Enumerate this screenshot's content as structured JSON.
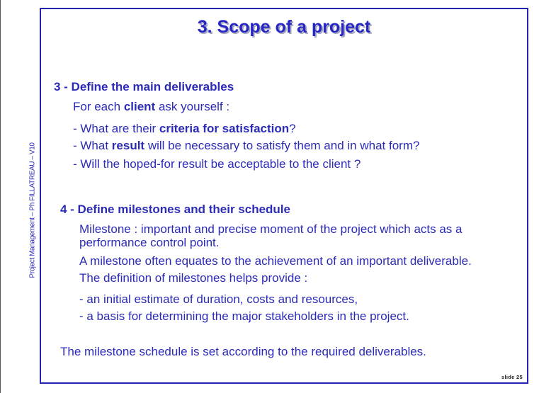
{
  "title": "3. Scope of a project",
  "side_label": "Project Management – Ph FILLATREAU – V10",
  "section3": {
    "heading": "3 - Define the main deliverables",
    "intro": {
      "pre": "For each ",
      "bold": "client",
      "post": " ask yourself :"
    },
    "bullets": [
      {
        "pre": "- What are their ",
        "bold": "criteria for satisfaction",
        "post": "?"
      },
      {
        "pre": "- What ",
        "bold": "result",
        "post": " will be necessary to satisfy them and in what form?"
      },
      {
        "pre": "- Will the hoped-for result be acceptable to the client ?",
        "bold": "",
        "post": ""
      }
    ]
  },
  "section4": {
    "heading": "4 - Define milestones and their schedule",
    "definition_line1": "Milestone : important and precise moment of the project which acts as a",
    "definition_line2": "performance control point.",
    "equates": "A milestone often equates to the achievement of an important deliverable.",
    "helps": "The definition of milestones helps provide :",
    "bullets": [
      "- an initial estimate of duration, costs and resources,",
      "- a basis for determining the major stakeholders in the project."
    ]
  },
  "conclusion": "The milestone schedule is set according to the required deliverables.",
  "slide_number": "slide 25"
}
